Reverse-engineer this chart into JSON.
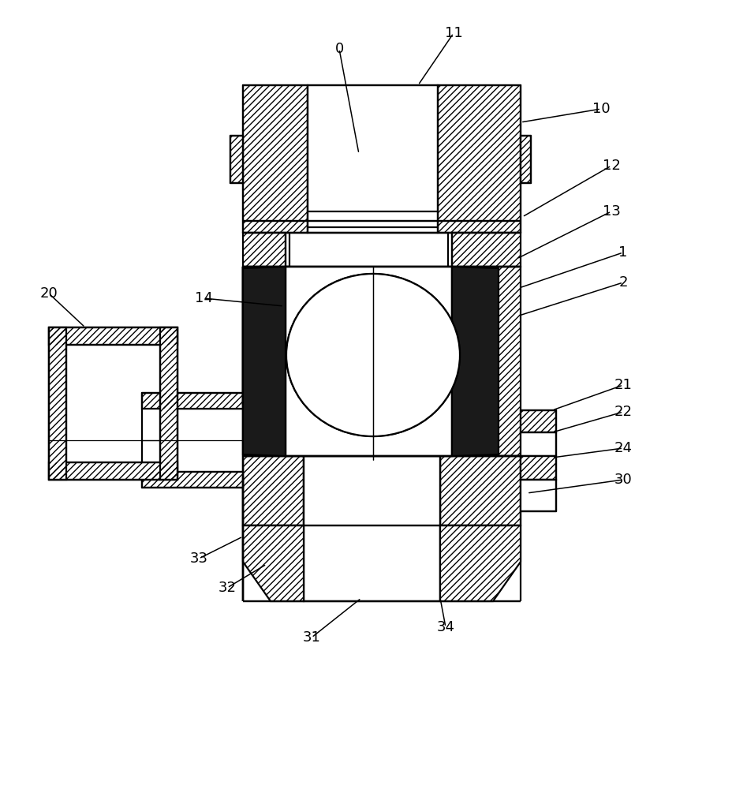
{
  "bg_color": "#ffffff",
  "line_color": "#000000",
  "annotations": [
    [
      "0",
      [
        430,
        62
      ],
      [
        455,
        195
      ]
    ],
    [
      "11",
      [
        575,
        42
      ],
      [
        530,
        108
      ]
    ],
    [
      "10",
      [
        762,
        138
      ],
      [
        660,
        155
      ]
    ],
    [
      "12",
      [
        775,
        210
      ],
      [
        662,
        275
      ]
    ],
    [
      "13",
      [
        775,
        268
      ],
      [
        655,
        328
      ]
    ],
    [
      "1",
      [
        790,
        320
      ],
      [
        658,
        365
      ]
    ],
    [
      "2",
      [
        790,
        358
      ],
      [
        658,
        400
      ]
    ],
    [
      "14",
      [
        258,
        378
      ],
      [
        360,
        388
      ]
    ],
    [
      "20",
      [
        62,
        372
      ],
      [
        108,
        415
      ]
    ],
    [
      "21",
      [
        790,
        488
      ],
      [
        700,
        520
      ]
    ],
    [
      "22",
      [
        790,
        522
      ],
      [
        700,
        548
      ]
    ],
    [
      "24",
      [
        790,
        568
      ],
      [
        700,
        580
      ]
    ],
    [
      "30",
      [
        790,
        608
      ],
      [
        668,
        625
      ]
    ],
    [
      "33",
      [
        252,
        708
      ],
      [
        308,
        680
      ]
    ],
    [
      "32",
      [
        288,
        745
      ],
      [
        338,
        715
      ]
    ],
    [
      "31",
      [
        395,
        808
      ],
      [
        458,
        758
      ]
    ],
    [
      "34",
      [
        565,
        795
      ],
      [
        558,
        758
      ]
    ]
  ]
}
